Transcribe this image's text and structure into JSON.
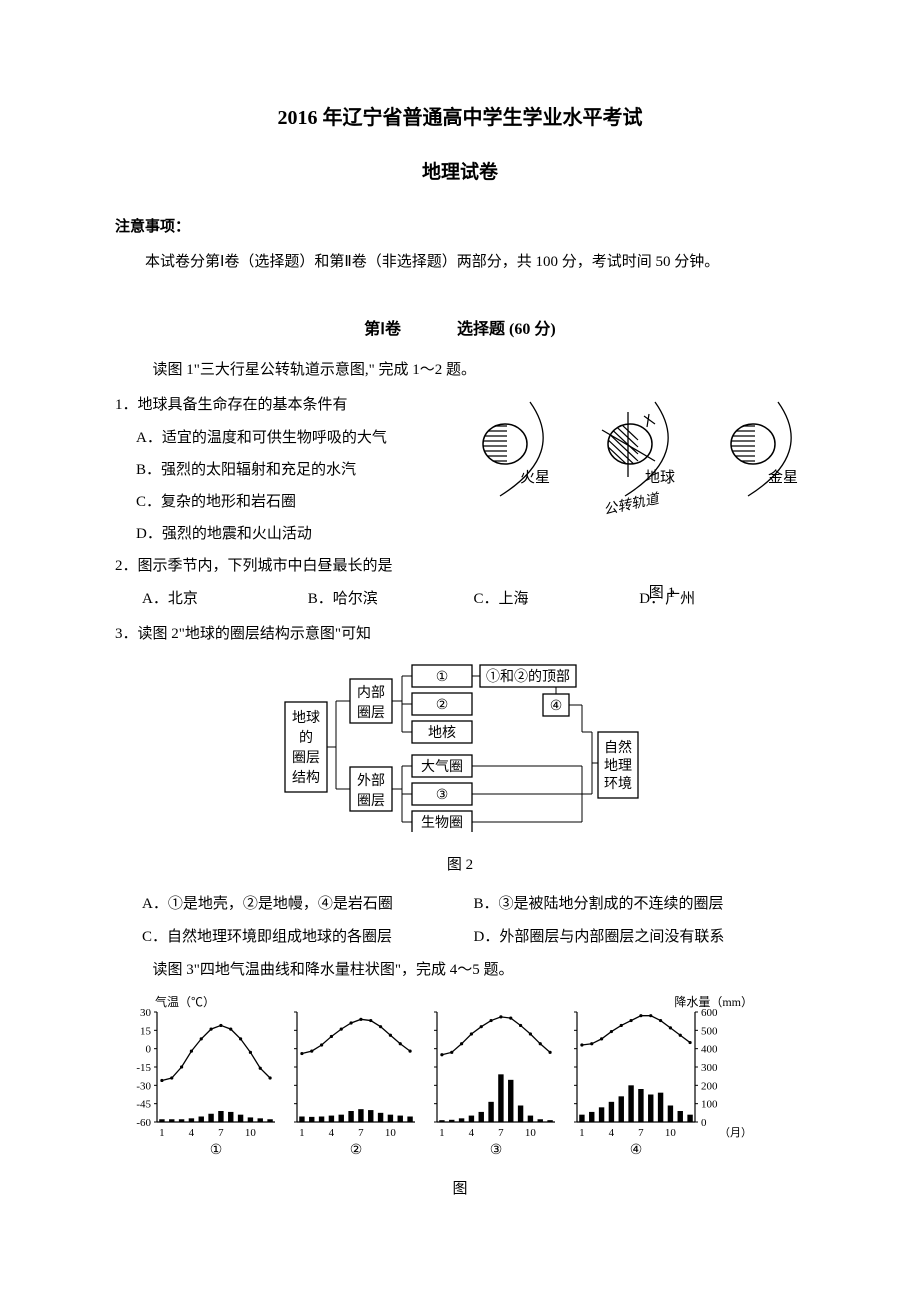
{
  "title_main": "2016 年辽宁省普通高中学生学业水平考试",
  "title_sub": "地理试卷",
  "notice_header": "注意事项：",
  "notice_body": "本试卷分第Ⅰ卷（选择题）和第Ⅱ卷（非选择题）两部分，共 100 分，考试时间 50 分钟。",
  "section1": {
    "label": "第Ⅰ卷",
    "type": "选择题 (60 分)"
  },
  "instr1": "读图 1\"三大行星公转轨道示意图,\" 完成 1～2 题。",
  "q1": {
    "stem": "1．地球具备生命存在的基本条件有",
    "A": "A．适宜的温度和可供生物呼吸的大气",
    "B": "B．强烈的太阳辐射和充足的水汽",
    "C": "C．复杂的地形和岩石圈",
    "D": "D．强烈的地震和火山活动"
  },
  "q2": {
    "stem": "2．图示季节内，下列城市中白昼最长的是",
    "A": "A．北京",
    "B": "B．哈尔滨",
    "C": "C．上海",
    "D": "D．广州"
  },
  "fig1": {
    "caption": "图 1",
    "p1": "火星",
    "p2": "地球",
    "p3": "金星",
    "orbit_label": "公转轨道"
  },
  "q3": {
    "stem": "3．读图 2\"地球的圈层结构示意图\"可知",
    "A": "A．①是地壳，②是地幔，④是岩石圈",
    "B": "B．③是被陆地分割成的不连续的圈层",
    "C": "C．自然地理环境即组成地球的各圈层",
    "D": "D．外部圈层与内部圈层之间没有联系"
  },
  "fig2": {
    "caption": "图 2",
    "root1": "地球",
    "root2": "的",
    "root3": "圈层",
    "root4": "结构",
    "inner1": "内部",
    "inner2": "圈层",
    "outer1": "外部",
    "outer2": "圈层",
    "n_circ1": "①",
    "n_circ2": "②",
    "n_core": "地核",
    "n_atmo": "大气圈",
    "n_circ3": "③",
    "n_bio": "生物圈",
    "top_label": "①和②的顶部",
    "n_circ4": "④",
    "right1": "自然",
    "right2": "地理",
    "right3": "环境"
  },
  "instr3": "读图 3\"四地气温曲线和降水量柱状图\"，完成 4～5 题。",
  "fig3": {
    "caption": "图",
    "y_temp_label": "气温（℃）",
    "y_precip_label": "降水量（mm）",
    "x_label": "（月）",
    "temp_ticks": [
      "30",
      "15",
      "0",
      "-15",
      "-30",
      "-45",
      "-60"
    ],
    "precip_ticks": [
      "600",
      "500",
      "400",
      "300",
      "200",
      "100",
      "0"
    ],
    "x_ticks": [
      "1",
      "4",
      "7",
      "10"
    ],
    "panel_labels": [
      "①",
      "②",
      "③",
      "④"
    ],
    "colors": {
      "line": "#000000",
      "bar": "#000000",
      "grid": "#000000"
    },
    "charts": [
      {
        "temp": [
          -26,
          -24,
          -15,
          -2,
          8,
          16,
          19,
          16,
          8,
          -3,
          -16,
          -24
        ],
        "precip": [
          15,
          15,
          15,
          20,
          30,
          45,
          60,
          55,
          40,
          25,
          20,
          15
        ]
      },
      {
        "temp": [
          -4,
          -2,
          3,
          10,
          16,
          21,
          24,
          23,
          18,
          11,
          4,
          -2
        ],
        "precip": [
          30,
          28,
          30,
          35,
          40,
          60,
          70,
          65,
          50,
          40,
          35,
          30
        ]
      },
      {
        "temp": [
          -5,
          -3,
          4,
          12,
          18,
          23,
          26,
          25,
          19,
          12,
          4,
          -3
        ],
        "precip": [
          10,
          12,
          20,
          35,
          55,
          110,
          260,
          230,
          90,
          35,
          15,
          10
        ]
      },
      {
        "temp": [
          3,
          4,
          8,
          14,
          19,
          23,
          27,
          27,
          23,
          17,
          11,
          5
        ],
        "precip": [
          40,
          55,
          80,
          110,
          140,
          200,
          180,
          150,
          160,
          90,
          60,
          40
        ]
      }
    ],
    "temp_range": [
      -60,
      30
    ],
    "precip_range": [
      0,
      600
    ]
  }
}
